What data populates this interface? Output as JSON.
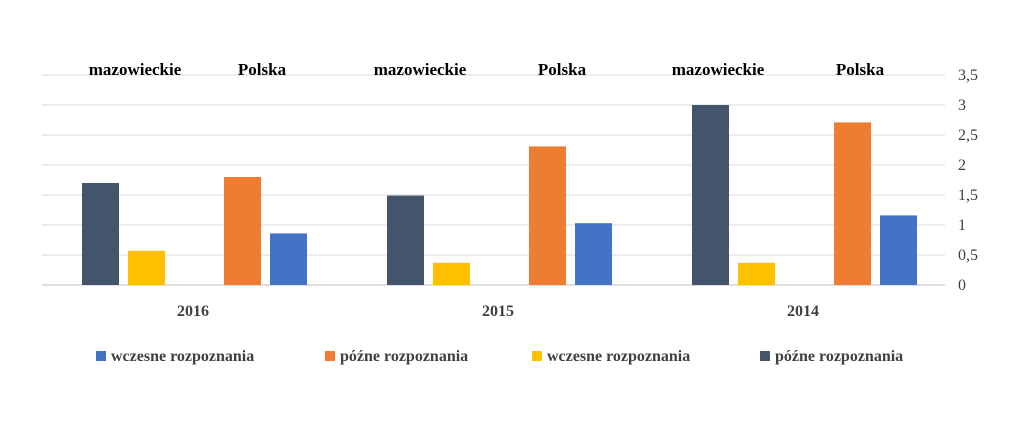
{
  "chart_data": {
    "type": "bar",
    "groups": [
      {
        "year": "2016",
        "labels": [
          "mazowieckie",
          "Polska"
        ],
        "values": [
          1.7,
          0.57,
          1.8,
          0.86
        ]
      },
      {
        "year": "2015",
        "labels": [
          "mazowieckie",
          "Polska"
        ],
        "values": [
          1.49,
          0.37,
          2.31,
          1.03
        ]
      },
      {
        "year": "2014",
        "labels": [
          "mazowieckie",
          "Polska"
        ],
        "values": [
          3.0,
          0.37,
          2.71,
          1.16
        ]
      }
    ],
    "bar_colors": [
      "#44546a",
      "#ffc000",
      "#ed7d31",
      "#4472c4"
    ],
    "ylim": [
      0,
      3.5
    ],
    "yticks": [
      "0",
      "0,5",
      "1",
      "1,5",
      "2",
      "2,5",
      "3",
      "3,5"
    ],
    "y_axis_position": "right",
    "grid": true,
    "legend_position": "bottom",
    "legend": [
      {
        "label": "wczesne rozpoznania",
        "color": "#4472c4"
      },
      {
        "label": "późne rozpoznania",
        "color": "#ed7d31"
      },
      {
        "label": "wczesne rozpoznania",
        "color": "#ffc000"
      },
      {
        "label": "późne rozpoznania",
        "color": "#44546a"
      }
    ]
  }
}
